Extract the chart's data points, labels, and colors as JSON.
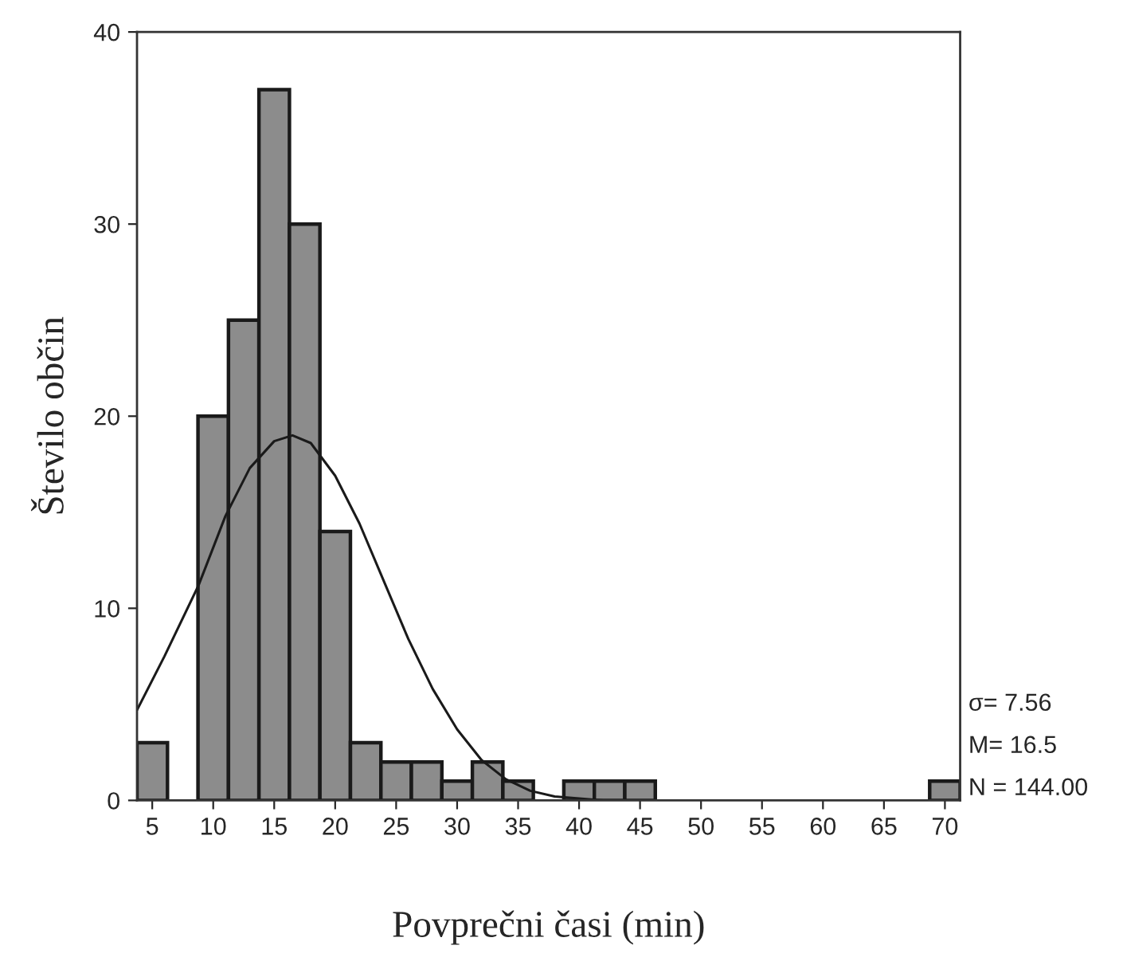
{
  "chart_data": {
    "type": "histogram",
    "xlabel": "Povprečni časi (min)",
    "ylabel": "Število občin",
    "bins": [
      3.75,
      6.25,
      8.75,
      11.25,
      13.75,
      16.25,
      18.75,
      21.25,
      23.75,
      26.25,
      28.75,
      31.25,
      33.75,
      36.25,
      38.75,
      41.25,
      43.75,
      46.25,
      48.75,
      51.25,
      53.75,
      56.25,
      58.75,
      61.25,
      63.75,
      66.25,
      68.75,
      71.25
    ],
    "values": [
      3,
      0,
      20,
      25,
      37,
      30,
      14,
      3,
      2,
      2,
      1,
      2,
      1,
      0,
      1,
      1,
      1,
      0,
      0,
      0,
      0,
      0,
      0,
      0,
      0,
      0,
      1
    ],
    "color": "#8c8c8c",
    "series": [
      {
        "type": "line",
        "color": "#1a1a1a",
        "x": [
          3.75,
          6,
          8.8,
          11,
          13,
          15,
          16.5,
          18,
          20,
          22,
          24,
          26,
          28,
          30,
          32,
          34,
          36,
          38,
          40,
          42
        ],
        "values": [
          4.7,
          7.5,
          11.2,
          14.8,
          17.3,
          18.7,
          19.0,
          18.6,
          16.9,
          14.4,
          11.4,
          8.4,
          5.8,
          3.7,
          2.1,
          1.1,
          0.5,
          0.2,
          0.1,
          0
        ]
      }
    ],
    "xlim": [
      3.75,
      71.25
    ],
    "ylim": [
      0,
      40
    ],
    "xticks": [
      5,
      10,
      15,
      20,
      25,
      30,
      35,
      40,
      45,
      50,
      55,
      60,
      65,
      70
    ],
    "yticks": [
      0,
      10,
      20,
      30,
      40
    ],
    "annotations": [
      "σ= 7.56",
      "M= 16.5",
      "N = 144.00"
    ]
  }
}
